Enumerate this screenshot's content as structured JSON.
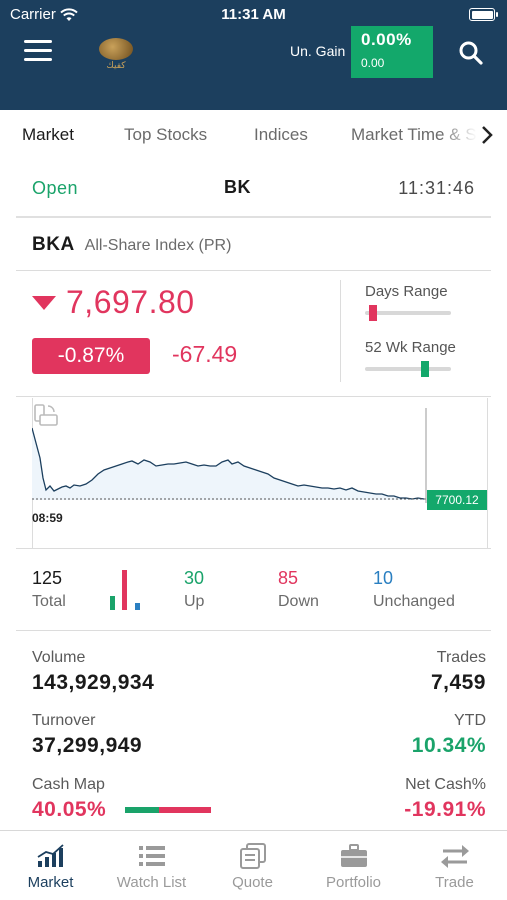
{
  "status_bar": {
    "carrier": "Carrier",
    "time": "11:31 AM"
  },
  "header": {
    "logo_text": "كفيك",
    "unrealized_gain_label": "Un. Gain",
    "unrealized_gain_pct": "0.00%",
    "unrealized_gain_value": "0.00",
    "accent_color": "#13a86b",
    "background_color": "#1c3f5e"
  },
  "tabs": [
    {
      "label": "Market",
      "active": true
    },
    {
      "label": "Top Stocks",
      "active": false
    },
    {
      "label": "Indices",
      "active": false
    },
    {
      "label": "Market Time & Sales",
      "active": false
    }
  ],
  "market_status": {
    "state": "Open",
    "exchange": "BK",
    "clock": "11:31:46"
  },
  "index": {
    "code": "BKA",
    "name": "All-Share Index (PR)",
    "value": "7,697.80",
    "direction": "down",
    "change_pct": "-0.87%",
    "change_value": "-67.49",
    "down_color": "#e1355e"
  },
  "ranges": {
    "days_range_label": "Days Range",
    "days_range_position": 0.05,
    "week52_range_label": "52 Wk Range",
    "week52_range_position": 0.72
  },
  "chart": {
    "start_time": "08:59",
    "last_value_label": "7700.12"
  },
  "stats": {
    "total": {
      "value": "125",
      "label": "Total"
    },
    "up": {
      "value": "30",
      "label": "Up",
      "color": "#1aa36a"
    },
    "down": {
      "value": "85",
      "label": "Down",
      "color": "#e1355e"
    },
    "unchanged": {
      "value": "10",
      "label": "Unchanged",
      "color": "#2a7fc1"
    }
  },
  "details": {
    "volume": {
      "label": "Volume",
      "value": "143,929,934"
    },
    "trades": {
      "label": "Trades",
      "value": "7,459"
    },
    "turnover": {
      "label": "Turnover",
      "value": "37,299,949"
    },
    "ytd": {
      "label": "YTD",
      "value": "10.34%"
    },
    "cash_map": {
      "label": "Cash Map",
      "value": "40.05%",
      "fraction": 0.4005
    },
    "net_cash": {
      "label": "Net Cash%",
      "value": "-19.91%"
    }
  },
  "bottom_nav": [
    {
      "label": "Market",
      "icon": "bar-chart-icon",
      "active": true
    },
    {
      "label": "Watch List",
      "icon": "list-icon",
      "active": false
    },
    {
      "label": "Quote",
      "icon": "quote-icon",
      "active": false
    },
    {
      "label": "Portfolio",
      "icon": "briefcase-icon",
      "active": false
    },
    {
      "label": "Trade",
      "icon": "swap-arrows-icon",
      "active": false
    }
  ]
}
